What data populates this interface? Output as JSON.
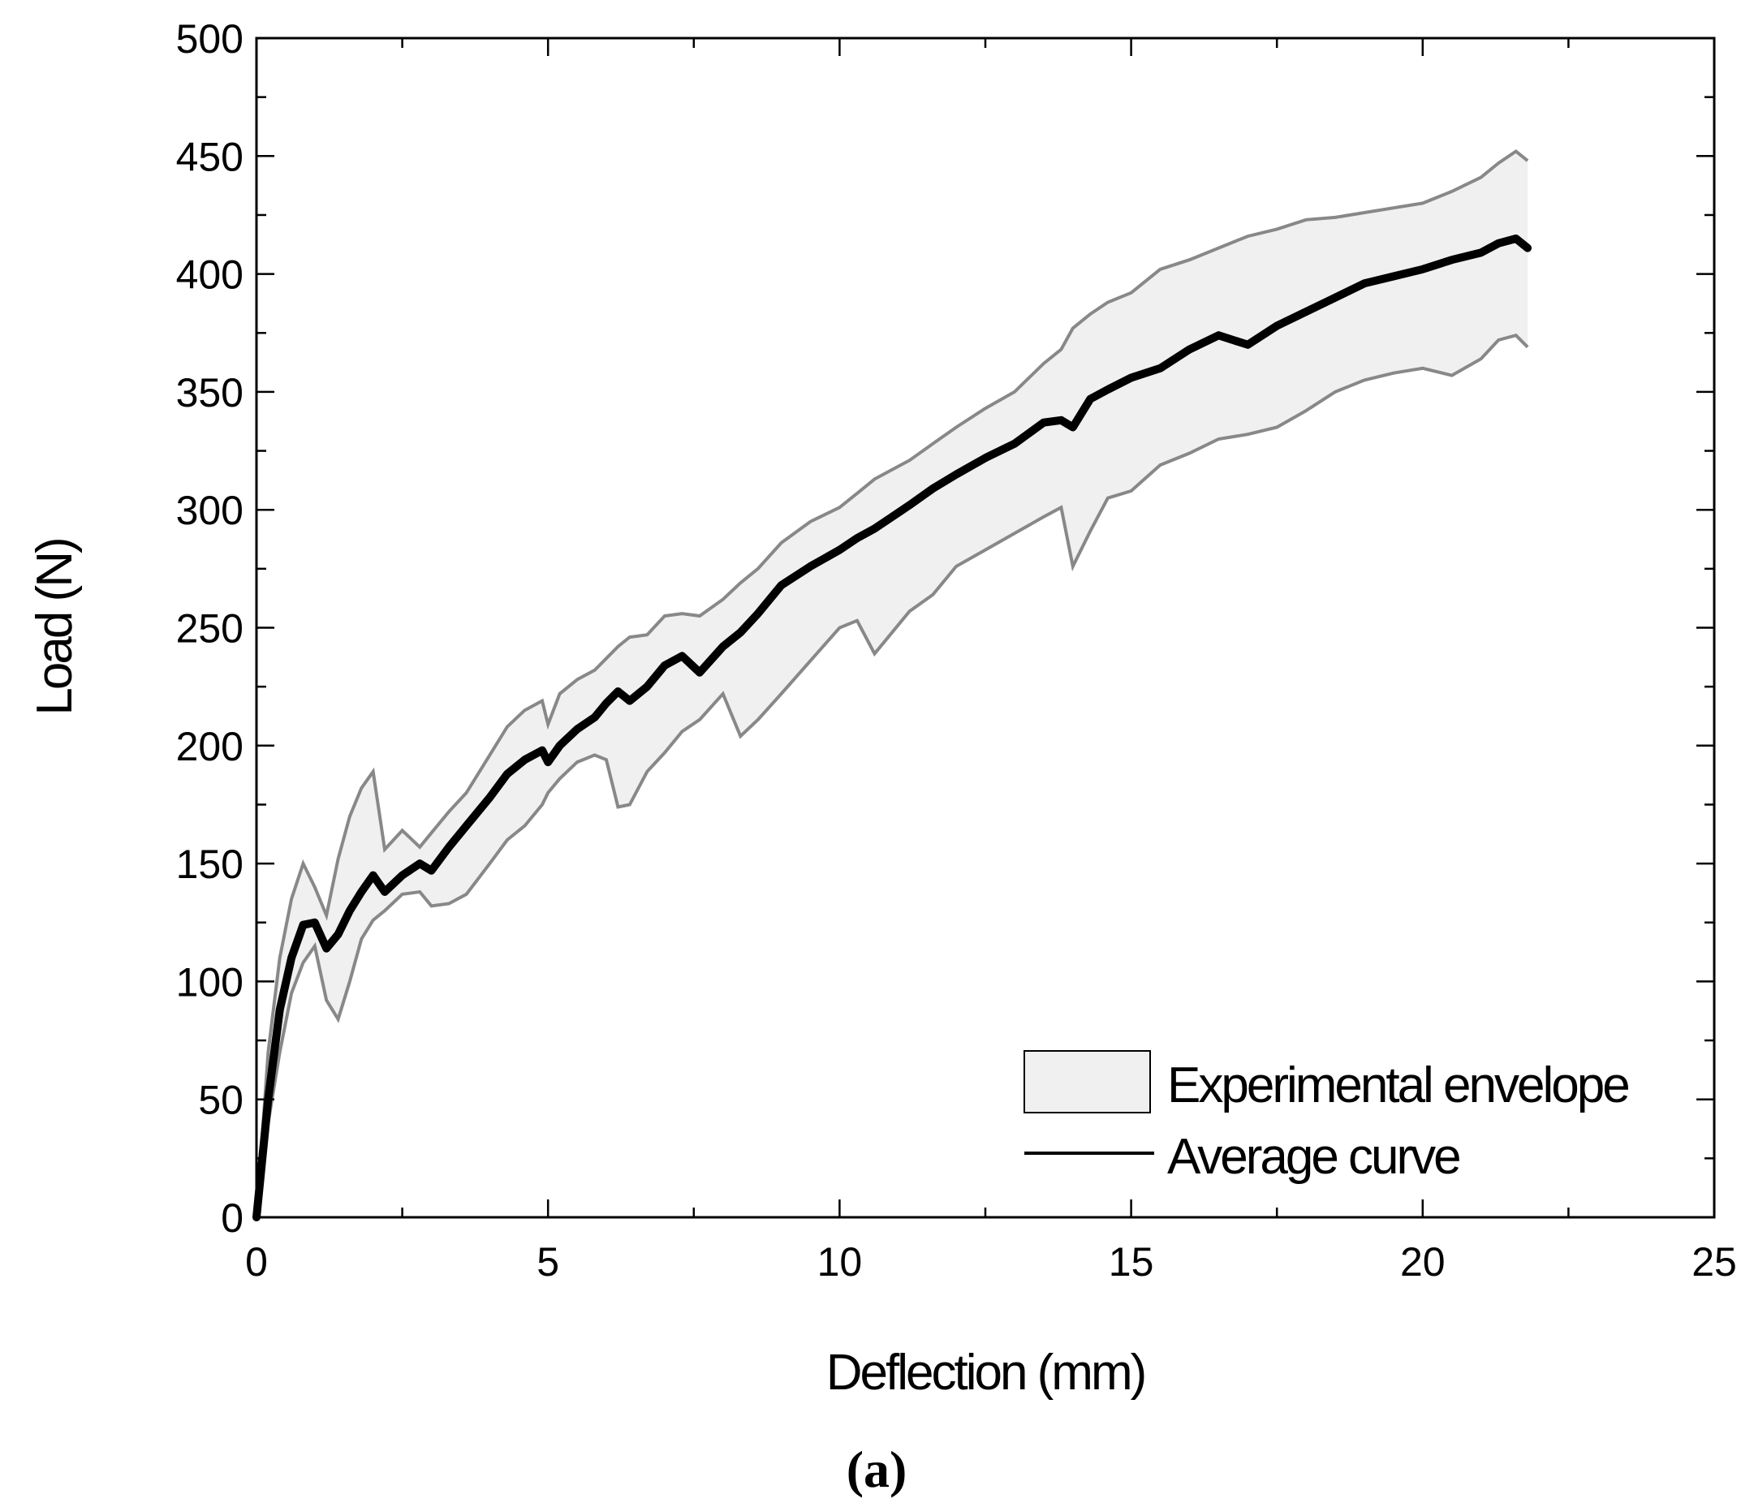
{
  "chart_data": {
    "type": "line",
    "title": "",
    "panel_label": "(a)",
    "xlabel": "Deflection (mm)",
    "ylabel": "Load (N)",
    "xlim": [
      0,
      25
    ],
    "ylim": [
      0,
      500
    ],
    "x_ticks": [
      0,
      5,
      10,
      15,
      20,
      25
    ],
    "x_tick_labels": [
      "0",
      "5",
      "10",
      "15",
      "20",
      "25"
    ],
    "y_ticks": [
      0,
      50,
      100,
      150,
      200,
      250,
      300,
      350,
      400,
      450,
      500
    ],
    "y_tick_labels": [
      "0",
      "50",
      "100",
      "150",
      "200",
      "250",
      "300",
      "350",
      "400",
      "450",
      "500"
    ],
    "grid": false,
    "legend_position": "bottom-right",
    "legend": [
      {
        "label": "Experimental envelope",
        "kind": "band",
        "fill": "#f0f0f0",
        "stroke": "#000000"
      },
      {
        "label": "Average curve",
        "kind": "line",
        "stroke": "#000000"
      }
    ],
    "colors": {
      "envelope_fill": "#f0f0f0",
      "envelope_edge": "#888888",
      "average_line": "#000000",
      "axes": "#000000"
    },
    "series": [
      {
        "name": "Experimental envelope",
        "kind": "band",
        "x": [
          0,
          0.2,
          0.4,
          0.6,
          0.8,
          1.0,
          1.2,
          1.4,
          1.6,
          1.8,
          2.0,
          2.2,
          2.5,
          2.8,
          3.0,
          3.3,
          3.6,
          4.0,
          4.3,
          4.6,
          4.9,
          5.0,
          5.2,
          5.5,
          5.8,
          6.0,
          6.2,
          6.4,
          6.7,
          7.0,
          7.3,
          7.6,
          8.0,
          8.3,
          8.6,
          9.0,
          9.5,
          10.0,
          10.3,
          10.6,
          10.9,
          11.2,
          11.6,
          12.0,
          12.5,
          13.0,
          13.5,
          13.8,
          14.0,
          14.3,
          14.6,
          15.0,
          15.5,
          16.0,
          16.5,
          17.0,
          17.5,
          18.0,
          18.5,
          19.0,
          19.5,
          20.0,
          20.5,
          21.0,
          21.3,
          21.6,
          21.8
        ],
        "upper": [
          0,
          70,
          110,
          135,
          150,
          140,
          128,
          152,
          170,
          182,
          189,
          156,
          164,
          157,
          163,
          172,
          180,
          196,
          208,
          215,
          219,
          209,
          222,
          228,
          232,
          237,
          242,
          246,
          247,
          255,
          256,
          255,
          262,
          269,
          275,
          286,
          295,
          301,
          307,
          313,
          317,
          321,
          328,
          335,
          343,
          350,
          362,
          368,
          377,
          383,
          388,
          392,
          402,
          406,
          411,
          416,
          419,
          423,
          424,
          426,
          428,
          430,
          435,
          441,
          447,
          452,
          448
        ],
        "lower": [
          0,
          40,
          70,
          95,
          108,
          115,
          92,
          84,
          100,
          118,
          126,
          130,
          137,
          138,
          132,
          133,
          137,
          150,
          160,
          166,
          175,
          180,
          186,
          193,
          196,
          194,
          174,
          175,
          189,
          197,
          206,
          211,
          222,
          204,
          211,
          222,
          236,
          250,
          253,
          239,
          248,
          257,
          264,
          276,
          283,
          290,
          297,
          301,
          276,
          291,
          305,
          308,
          319,
          324,
          330,
          332,
          335,
          342,
          350,
          355,
          358,
          360,
          357,
          364,
          372,
          374,
          369
        ]
      },
      {
        "name": "Average curve",
        "kind": "line",
        "x": [
          0,
          0.2,
          0.4,
          0.6,
          0.8,
          1.0,
          1.2,
          1.4,
          1.6,
          1.8,
          2.0,
          2.2,
          2.5,
          2.8,
          3.0,
          3.3,
          3.6,
          4.0,
          4.3,
          4.6,
          4.9,
          5.0,
          5.2,
          5.5,
          5.8,
          6.0,
          6.2,
          6.4,
          6.7,
          7.0,
          7.3,
          7.6,
          8.0,
          8.3,
          8.6,
          9.0,
          9.5,
          10.0,
          10.3,
          10.6,
          10.9,
          11.2,
          11.6,
          12.0,
          12.5,
          13.0,
          13.5,
          13.8,
          14.0,
          14.3,
          14.6,
          15.0,
          15.5,
          16.0,
          16.5,
          17.0,
          17.5,
          18.0,
          18.5,
          19.0,
          19.5,
          20.0,
          20.5,
          21.0,
          21.3,
          21.6,
          21.8
        ],
        "y": [
          0,
          50,
          88,
          110,
          124,
          125,
          114,
          120,
          130,
          138,
          145,
          138,
          145,
          150,
          147,
          157,
          166,
          178,
          188,
          194,
          198,
          193,
          200,
          207,
          212,
          218,
          223,
          219,
          225,
          234,
          238,
          231,
          242,
          248,
          256,
          268,
          276,
          283,
          288,
          292,
          297,
          302,
          309,
          315,
          322,
          328,
          337,
          338,
          335,
          347,
          351,
          356,
          360,
          368,
          374,
          370,
          378,
          384,
          390,
          396,
          399,
          402,
          406,
          409,
          413,
          415,
          411
        ]
      }
    ]
  }
}
